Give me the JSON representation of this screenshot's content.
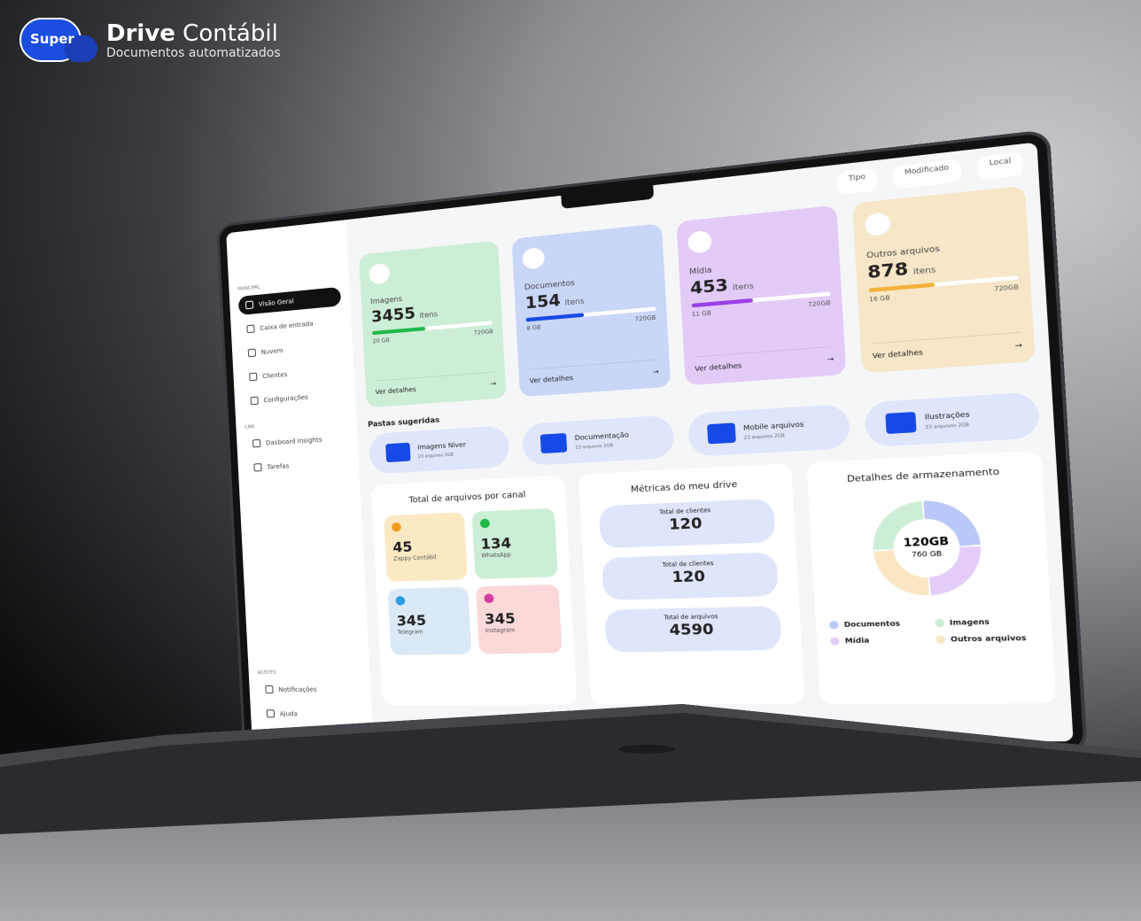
{
  "brand": {
    "badge": "Super",
    "title_bold": "Drive",
    "title_rest": "Contábil",
    "subtitle": "Documentos automatizados"
  },
  "toolbar": [
    "Tipo",
    "Modificado",
    "Local"
  ],
  "sidebar": {
    "sections": [
      {
        "label": "PRINCIPAL",
        "items": [
          "Visão Geral",
          "Caixa de entrada",
          "Nuvem",
          "Clientes",
          "Configurações"
        ]
      },
      {
        "label": "CMA",
        "items": [
          "Dasboard Insights",
          "Tarefas"
        ]
      },
      {
        "label": "AJUSTES",
        "items": [
          "Notificações",
          "Ajuda"
        ]
      }
    ]
  },
  "storage_cards": [
    {
      "name": "Imagens",
      "count": 3455,
      "unit": "itens",
      "used": "20 GB",
      "total": "720GB",
      "link": "Ver detalhes"
    },
    {
      "name": "Documentos",
      "count": 154,
      "unit": "itens",
      "used": "8 GB",
      "total": "720GB",
      "link": "Ver detalhes"
    },
    {
      "name": "Mídia",
      "count": 453,
      "unit": "itens",
      "used": "11 GB",
      "total": "720GB",
      "link": "Ver detalhes"
    },
    {
      "name": "Outros arquivos",
      "count": 878,
      "unit": "itens",
      "used": "16 GB",
      "total": "720GB",
      "link": "Ver detalhes"
    }
  ],
  "suggested_folders": {
    "title": "Pastas sugeridas",
    "folders": [
      {
        "name": "Imagens Niver",
        "meta": "23 arquivos 2GB"
      },
      {
        "name": "Documentação",
        "meta": "23 arquivos 2GB"
      },
      {
        "name": "Mobile arquivos",
        "meta": "23 arquivos 2GB"
      },
      {
        "name": "Ilustrações",
        "meta": "23 arquivos 2GB"
      }
    ]
  },
  "channels": {
    "title": "Total de arquivos por canal",
    "items": [
      {
        "count": 45,
        "name": "Zappy Contábil"
      },
      {
        "count": 134,
        "name": "WhatsApp"
      },
      {
        "count": 345,
        "name": "Telegram"
      },
      {
        "count": 345,
        "name": "Instagram"
      }
    ]
  },
  "metrics": {
    "title": "Métricas do meu drive",
    "items": [
      {
        "label": "Total de clientes",
        "value": 120
      },
      {
        "label": "Total de clientes",
        "value": 120
      },
      {
        "label": "Total de arquivos",
        "value": 4590
      }
    ]
  },
  "storage_details": {
    "title": "Detalhes de armazenamento",
    "used": "120GB",
    "total": "760 GB",
    "legend": [
      "Documentos",
      "Imagens",
      "Mídia",
      "Outros arquivos"
    ]
  }
}
